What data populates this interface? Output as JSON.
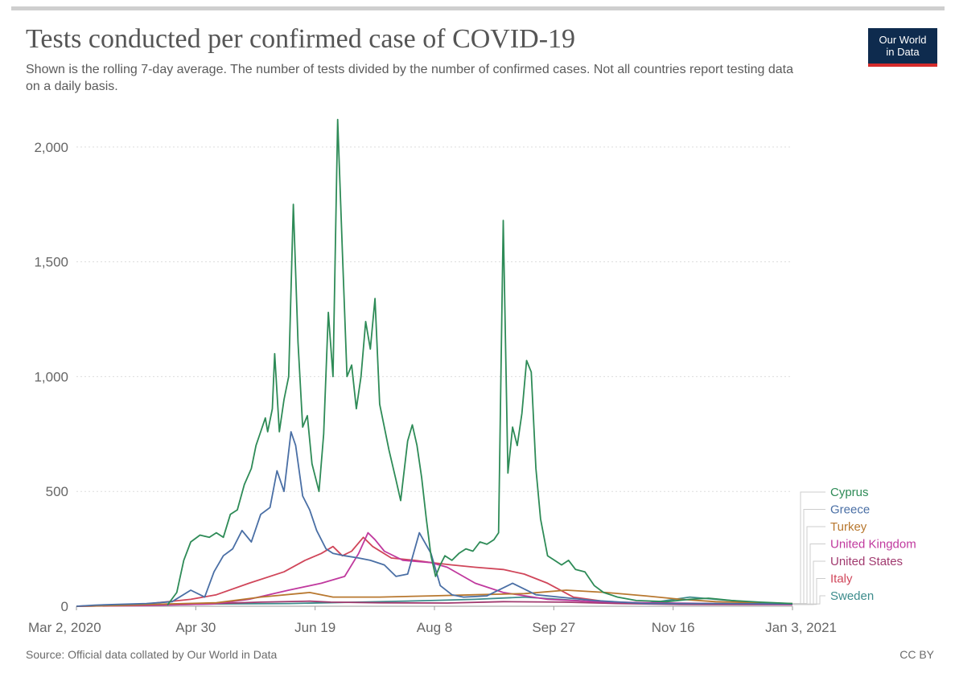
{
  "header": {
    "title": "Tests conducted per confirmed case of COVID-19",
    "subtitle": "Shown is the rolling 7-day average. The number of tests divided by the number of confirmed cases. Not all countries report testing data on a daily basis.",
    "logo_line1": "Our World",
    "logo_line2": "in Data"
  },
  "footer": {
    "source": "Source: Official data collated by Our World in Data",
    "license": "CC BY"
  },
  "colors": {
    "gridline": "#dddddd",
    "axis": "#999999",
    "logo_bg": "#0e2b4e",
    "logo_accent": "#d42b2b"
  },
  "chart_data": {
    "type": "line",
    "title": "Tests conducted per confirmed case of COVID-19",
    "xlabel": "",
    "ylabel": "",
    "x_ticks": [
      "Mar 2, 2020",
      "Apr 30",
      "Jun 19",
      "Aug 8",
      "Sep 27",
      "Nov 16",
      "Jan 3, 2021"
    ],
    "y_ticks": [
      0,
      500,
      1000,
      1500,
      2000
    ],
    "y_tick_labels": [
      "0",
      "500",
      "1,000",
      "1,500",
      "2,000"
    ],
    "xlim": [
      "2020-03-02",
      "2021-01-03"
    ],
    "ylim": [
      0,
      2150
    ],
    "grid": "horizontal dotted",
    "legend_placement": "right",
    "series": [
      {
        "name": "Cyprus",
        "color": "#2e8b57",
        "points": [
          [
            "2020-04-10",
            5
          ],
          [
            "2020-04-14",
            60
          ],
          [
            "2020-04-17",
            200
          ],
          [
            "2020-04-20",
            280
          ],
          [
            "2020-04-24",
            310
          ],
          [
            "2020-04-28",
            300
          ],
          [
            "2020-05-01",
            320
          ],
          [
            "2020-05-04",
            300
          ],
          [
            "2020-05-07",
            400
          ],
          [
            "2020-05-10",
            420
          ],
          [
            "2020-05-13",
            530
          ],
          [
            "2020-05-16",
            600
          ],
          [
            "2020-05-18",
            700
          ],
          [
            "2020-05-20",
            760
          ],
          [
            "2020-05-22",
            820
          ],
          [
            "2020-05-23",
            760
          ],
          [
            "2020-05-25",
            860
          ],
          [
            "2020-05-26",
            1100
          ],
          [
            "2020-05-28",
            760
          ],
          [
            "2020-05-30",
            900
          ],
          [
            "2020-06-01",
            1000
          ],
          [
            "2020-06-03",
            1750
          ],
          [
            "2020-06-05",
            1150
          ],
          [
            "2020-06-07",
            780
          ],
          [
            "2020-06-09",
            830
          ],
          [
            "2020-06-11",
            620
          ],
          [
            "2020-06-14",
            500
          ],
          [
            "2020-06-16",
            750
          ],
          [
            "2020-06-18",
            1280
          ],
          [
            "2020-06-20",
            1000
          ],
          [
            "2020-06-22",
            2120
          ],
          [
            "2020-06-24",
            1550
          ],
          [
            "2020-06-26",
            1000
          ],
          [
            "2020-06-28",
            1050
          ],
          [
            "2020-06-30",
            860
          ],
          [
            "2020-07-02",
            1000
          ],
          [
            "2020-07-04",
            1240
          ],
          [
            "2020-07-06",
            1120
          ],
          [
            "2020-07-08",
            1340
          ],
          [
            "2020-07-10",
            880
          ],
          [
            "2020-07-12",
            780
          ],
          [
            "2020-07-14",
            680
          ],
          [
            "2020-07-17",
            550
          ],
          [
            "2020-07-19",
            460
          ],
          [
            "2020-07-22",
            720
          ],
          [
            "2020-07-24",
            790
          ],
          [
            "2020-07-26",
            700
          ],
          [
            "2020-07-28",
            560
          ],
          [
            "2020-07-30",
            380
          ],
          [
            "2020-08-01",
            220
          ],
          [
            "2020-08-03",
            130
          ],
          [
            "2020-08-05",
            180
          ],
          [
            "2020-08-07",
            220
          ],
          [
            "2020-08-10",
            200
          ],
          [
            "2020-08-13",
            230
          ],
          [
            "2020-08-16",
            250
          ],
          [
            "2020-08-19",
            240
          ],
          [
            "2020-08-22",
            280
          ],
          [
            "2020-08-25",
            270
          ],
          [
            "2020-08-28",
            290
          ],
          [
            "2020-08-30",
            320
          ],
          [
            "2020-09-01",
            1680
          ],
          [
            "2020-09-03",
            580
          ],
          [
            "2020-09-05",
            780
          ],
          [
            "2020-09-07",
            700
          ],
          [
            "2020-09-09",
            840
          ],
          [
            "2020-09-11",
            1070
          ],
          [
            "2020-09-13",
            1020
          ],
          [
            "2020-09-15",
            600
          ],
          [
            "2020-09-17",
            380
          ],
          [
            "2020-09-20",
            220
          ],
          [
            "2020-09-23",
            200
          ],
          [
            "2020-09-26",
            180
          ],
          [
            "2020-09-29",
            200
          ],
          [
            "2020-10-02",
            160
          ],
          [
            "2020-10-06",
            150
          ],
          [
            "2020-10-10",
            90
          ],
          [
            "2020-10-14",
            60
          ],
          [
            "2020-10-20",
            40
          ],
          [
            "2020-10-28",
            25
          ],
          [
            "2020-11-10",
            20
          ],
          [
            "2020-11-20",
            30
          ],
          [
            "2020-11-28",
            35
          ],
          [
            "2020-12-08",
            25
          ],
          [
            "2020-12-20",
            18
          ],
          [
            "2021-01-03",
            12
          ]
        ]
      },
      {
        "name": "Greece",
        "color": "#4a6fa5",
        "points": [
          [
            "2020-03-02",
            0
          ],
          [
            "2020-03-10",
            5
          ],
          [
            "2020-03-20",
            8
          ],
          [
            "2020-04-01",
            12
          ],
          [
            "2020-04-12",
            20
          ],
          [
            "2020-04-20",
            70
          ],
          [
            "2020-04-26",
            40
          ],
          [
            "2020-04-30",
            150
          ],
          [
            "2020-05-04",
            220
          ],
          [
            "2020-05-08",
            250
          ],
          [
            "2020-05-12",
            330
          ],
          [
            "2020-05-16",
            280
          ],
          [
            "2020-05-20",
            400
          ],
          [
            "2020-05-24",
            430
          ],
          [
            "2020-05-27",
            590
          ],
          [
            "2020-05-30",
            500
          ],
          [
            "2020-06-02",
            760
          ],
          [
            "2020-06-04",
            700
          ],
          [
            "2020-06-07",
            480
          ],
          [
            "2020-06-10",
            420
          ],
          [
            "2020-06-13",
            330
          ],
          [
            "2020-06-17",
            250
          ],
          [
            "2020-06-20",
            230
          ],
          [
            "2020-06-25",
            220
          ],
          [
            "2020-07-01",
            210
          ],
          [
            "2020-07-06",
            200
          ],
          [
            "2020-07-12",
            180
          ],
          [
            "2020-07-17",
            130
          ],
          [
            "2020-07-22",
            140
          ],
          [
            "2020-07-27",
            320
          ],
          [
            "2020-08-01",
            230
          ],
          [
            "2020-08-05",
            90
          ],
          [
            "2020-08-10",
            50
          ],
          [
            "2020-08-15",
            40
          ],
          [
            "2020-08-25",
            45
          ],
          [
            "2020-09-05",
            100
          ],
          [
            "2020-09-15",
            50
          ],
          [
            "2020-09-25",
            40
          ],
          [
            "2020-10-10",
            25
          ],
          [
            "2020-11-01",
            12
          ],
          [
            "2020-12-01",
            12
          ],
          [
            "2021-01-03",
            10
          ]
        ]
      },
      {
        "name": "Turkey",
        "color": "#b8782f",
        "points": [
          [
            "2020-03-02",
            0
          ],
          [
            "2020-03-20",
            3
          ],
          [
            "2020-04-10",
            10
          ],
          [
            "2020-05-01",
            15
          ],
          [
            "2020-05-20",
            40
          ],
          [
            "2020-06-10",
            60
          ],
          [
            "2020-06-20",
            40
          ],
          [
            "2020-07-10",
            40
          ],
          [
            "2020-08-01",
            45
          ],
          [
            "2020-08-20",
            50
          ],
          [
            "2020-09-10",
            55
          ],
          [
            "2020-09-28",
            70
          ],
          [
            "2020-10-15",
            60
          ],
          [
            "2020-11-01",
            45
          ],
          [
            "2020-11-16",
            30
          ],
          [
            "2020-12-01",
            20
          ],
          [
            "2020-12-20",
            15
          ],
          [
            "2021-01-03",
            12
          ]
        ]
      },
      {
        "name": "United Kingdom",
        "color": "#c0399e",
        "points": [
          [
            "2020-03-02",
            0
          ],
          [
            "2020-04-01",
            3
          ],
          [
            "2020-04-30",
            10
          ],
          [
            "2020-05-15",
            30
          ],
          [
            "2020-06-01",
            70
          ],
          [
            "2020-06-15",
            100
          ],
          [
            "2020-06-25",
            130
          ],
          [
            "2020-07-01",
            230
          ],
          [
            "2020-07-05",
            320
          ],
          [
            "2020-07-08",
            290
          ],
          [
            "2020-07-12",
            240
          ],
          [
            "2020-07-20",
            200
          ],
          [
            "2020-08-01",
            190
          ],
          [
            "2020-08-08",
            170
          ],
          [
            "2020-08-20",
            100
          ],
          [
            "2020-09-01",
            60
          ],
          [
            "2020-09-20",
            30
          ],
          [
            "2020-10-10",
            20
          ],
          [
            "2020-11-01",
            15
          ],
          [
            "2021-01-03",
            8
          ]
        ]
      },
      {
        "name": "United States",
        "color": "#a13a6f",
        "points": [
          [
            "2020-03-02",
            0
          ],
          [
            "2020-03-20",
            3
          ],
          [
            "2020-04-10",
            8
          ],
          [
            "2020-05-01",
            12
          ],
          [
            "2020-05-20",
            18
          ],
          [
            "2020-06-10",
            22
          ],
          [
            "2020-06-19",
            18
          ],
          [
            "2020-07-10",
            15
          ],
          [
            "2020-08-08",
            14
          ],
          [
            "2020-09-01",
            20
          ],
          [
            "2020-09-27",
            18
          ],
          [
            "2020-10-20",
            12
          ],
          [
            "2020-11-16",
            8
          ],
          [
            "2021-01-03",
            7
          ]
        ]
      },
      {
        "name": "Italy",
        "color": "#d0465a",
        "points": [
          [
            "2020-03-02",
            0
          ],
          [
            "2020-03-15",
            5
          ],
          [
            "2020-04-01",
            10
          ],
          [
            "2020-04-20",
            30
          ],
          [
            "2020-05-01",
            50
          ],
          [
            "2020-05-15",
            100
          ],
          [
            "2020-05-30",
            150
          ],
          [
            "2020-06-08",
            200
          ],
          [
            "2020-06-15",
            230
          ],
          [
            "2020-06-20",
            260
          ],
          [
            "2020-06-24",
            220
          ],
          [
            "2020-06-28",
            240
          ],
          [
            "2020-07-03",
            300
          ],
          [
            "2020-07-07",
            260
          ],
          [
            "2020-07-15",
            210
          ],
          [
            "2020-07-25",
            200
          ],
          [
            "2020-08-01",
            190
          ],
          [
            "2020-08-10",
            180
          ],
          [
            "2020-08-20",
            170
          ],
          [
            "2020-09-01",
            160
          ],
          [
            "2020-09-10",
            140
          ],
          [
            "2020-09-20",
            100
          ],
          [
            "2020-10-01",
            40
          ],
          [
            "2020-10-15",
            20
          ],
          [
            "2020-11-01",
            12
          ],
          [
            "2020-12-01",
            10
          ],
          [
            "2021-01-03",
            8
          ]
        ]
      },
      {
        "name": "Sweden",
        "color": "#3d8c8c",
        "points": [
          [
            "2020-03-02",
            0
          ],
          [
            "2020-04-01",
            5
          ],
          [
            "2020-05-01",
            10
          ],
          [
            "2020-06-01",
            12
          ],
          [
            "2020-07-01",
            18
          ],
          [
            "2020-08-01",
            25
          ],
          [
            "2020-08-20",
            30
          ],
          [
            "2020-09-10",
            40
          ],
          [
            "2020-09-25",
            30
          ],
          [
            "2020-10-10",
            20
          ],
          [
            "2020-11-01",
            12
          ],
          [
            "2020-11-20",
            40
          ],
          [
            "2020-12-01",
            30
          ],
          [
            "2020-12-20",
            15
          ],
          [
            "2021-01-03",
            10
          ]
        ]
      }
    ]
  }
}
